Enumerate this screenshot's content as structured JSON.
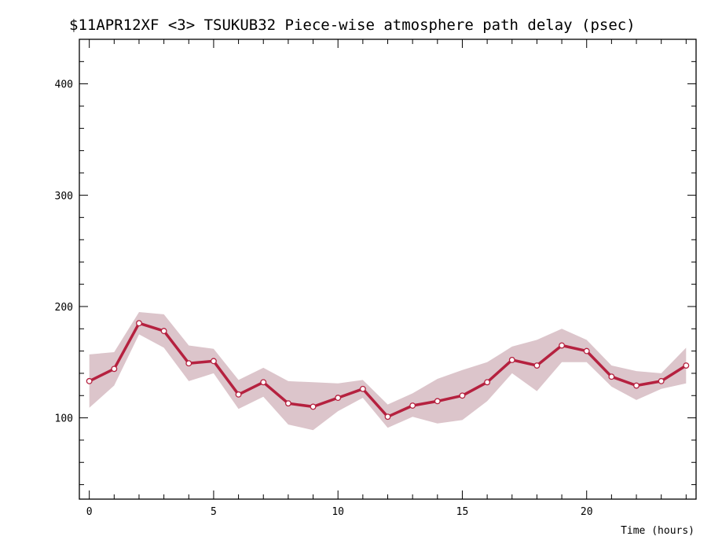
{
  "chart_data": {
    "type": "line",
    "title": "$11APR12XF <3>  TSUKUB32  Piece-wise atmosphere path delay (psec)",
    "xlabel": "Time (hours)",
    "ylabel": "",
    "xlim": [
      -0.4,
      24.4
    ],
    "ylim": [
      27,
      440
    ],
    "xticks": [
      0,
      5,
      10,
      15,
      20
    ],
    "yticks": [
      100,
      200,
      300,
      400
    ],
    "x_minor_step": 1,
    "y_minor_step": 20,
    "grid": false,
    "legend": "none",
    "colors": {
      "line": "#b5213f",
      "band": "#dcc5cb",
      "marker_fill": "#ffffff",
      "axis": "#000000"
    },
    "series": [
      {
        "x": [
          0,
          1,
          2,
          3,
          4,
          5,
          6,
          7,
          8,
          9,
          10,
          11,
          12,
          13,
          14,
          15,
          16,
          17,
          18,
          19,
          20,
          21,
          22,
          23,
          24
        ],
        "values": [
          133,
          144,
          185,
          178,
          149,
          151,
          121,
          132,
          113,
          110,
          118,
          126,
          101,
          111,
          115,
          120,
          132,
          152,
          147,
          165,
          160,
          137,
          129,
          133,
          147
        ],
        "upper": [
          157,
          159,
          195,
          193,
          165,
          162,
          134,
          145,
          133,
          132,
          131,
          134,
          112,
          122,
          135,
          143,
          150,
          164,
          170,
          180,
          170,
          147,
          142,
          140,
          163
        ],
        "lower": [
          109,
          129,
          175,
          163,
          133,
          140,
          108,
          119,
          94,
          89,
          106,
          118,
          91,
          101,
          95,
          98,
          115,
          140,
          124,
          150,
          150,
          128,
          116,
          126,
          131
        ]
      }
    ]
  }
}
